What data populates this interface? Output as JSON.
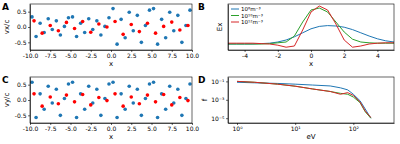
{
  "chart_data": [
    {
      "type": "scatter",
      "title": "A",
      "xlabel": "x",
      "ylabel": "vx/c",
      "xlim": [
        -10,
        10
      ],
      "ylim": [
        -0.75,
        0.75
      ],
      "xticks": [
        {
          "value": -10,
          "label": "-10.0"
        },
        -7.5,
        {
          "value": -5,
          "label": "-5.0"
        },
        -2.5,
        {
          "value": 0,
          "label": "0.0"
        },
        2.5,
        {
          "value": 5,
          "label": "5.0"
        },
        7.5,
        {
          "value": 10,
          "label": "10.0"
        }
      ],
      "yticks": [
        -0.5,
        {
          "value": 0,
          "label": "0.0"
        },
        0.5
      ],
      "series": [
        {
          "color": "#1f77b4",
          "x": [
            -9.75,
            -9.25,
            -8.75,
            -8.25,
            -7.75,
            -7.25,
            -6.75,
            -6.25,
            -5.75,
            -5.25,
            -4.75,
            -4.25,
            -3.75,
            -3.25,
            -2.75,
            -2.25,
            -1.75,
            -1.25,
            -0.75,
            -0.25,
            0.25,
            0.75,
            1.25,
            1.75,
            2.25,
            2.75,
            3.25,
            3.75,
            4.25,
            4.75,
            5.25,
            5.75,
            6.25,
            6.75,
            7.25,
            7.75,
            8.25,
            8.75,
            9.25,
            9.75
          ],
          "values": [
            0.33,
            -0.31,
            0.12,
            -0.18,
            0.27,
            -0.08,
            0.2,
            -0.26,
            0.02,
            0.3,
            0.33,
            -0.31,
            0.12,
            -0.18,
            0.27,
            -0.08,
            0.2,
            -0.26,
            0.02,
            0.3,
            0.6,
            -0.56,
            0.25,
            -0.35,
            0.48,
            -0.12,
            0.38,
            -0.5,
            0.05,
            0.55,
            0.6,
            -0.56,
            0.25,
            -0.35,
            0.48,
            -0.12,
            0.38,
            -0.5,
            0.05,
            0.55
          ]
        },
        {
          "color": "#ff0000",
          "x": [
            -9.5,
            -8.5,
            -7.5,
            -6.5,
            -5.5,
            -4.5,
            -3.5,
            -2.5,
            -1.5,
            -0.5,
            0.5,
            1.5,
            2.5,
            3.5,
            4.5,
            5.5,
            6.5,
            7.5,
            8.5,
            9.5
          ],
          "values": [
            0.2,
            -0.2,
            0.05,
            -0.12,
            0.15,
            -0.05,
            0.18,
            -0.17,
            0.1,
            0.0,
            0.18,
            -0.24,
            0.08,
            -0.15,
            0.12,
            -0.2,
            0.02,
            0.16,
            -0.1,
            0.05
          ]
        }
      ]
    },
    {
      "type": "line",
      "title": "B",
      "xlabel": "x",
      "ylabel": "Ex",
      "xlim": [
        -5,
        5
      ],
      "ylim": [
        -0.15,
        1.0
      ],
      "xticks": [
        -4,
        -2,
        0,
        2,
        4
      ],
      "tick_labels": "x",
      "legend": "upper left",
      "x": [
        -5,
        -4.5,
        -4,
        -3.5,
        -3,
        -2.5,
        -2,
        -1.5,
        -1,
        -0.5,
        0,
        0.5,
        1,
        1.5,
        2,
        2.5,
        3,
        3.5,
        4,
        4.5,
        5
      ],
      "series": [
        {
          "name": "10⁸m⁻³",
          "color": "#1f77b4",
          "values": [
            0,
            0,
            0,
            0,
            0.01,
            0.02,
            0.05,
            0.1,
            0.18,
            0.28,
            0.38,
            0.44,
            0.46,
            0.45,
            0.42,
            0.36,
            0.28,
            0.2,
            0.13,
            0.08,
            0.05
          ]
        },
        {
          "name": "10¹⁰m⁻³",
          "color": "#2ca02c",
          "values": [
            0,
            0,
            0,
            0,
            0,
            0.01,
            0.03,
            0.05,
            0.2,
            0.55,
            0.85,
            0.9,
            0.8,
            0.55,
            0.3,
            0.12,
            0.05,
            0.03,
            0.02,
            0.02,
            0.02
          ]
        },
        {
          "name": "10¹²m⁻³",
          "color": "#d62728",
          "values": [
            0.02,
            0.02,
            0.02,
            0.02,
            0.01,
            0.0,
            -0.03,
            -0.08,
            -0.05,
            0.35,
            0.8,
            0.95,
            0.85,
            0.5,
            0.1,
            -0.08,
            -0.05,
            0.0,
            0.02,
            0.03,
            0.03
          ]
        }
      ]
    },
    {
      "type": "scatter",
      "title": "C",
      "xlabel": "x",
      "ylabel": "vy/c",
      "xlim": [
        -10,
        10
      ],
      "ylim": [
        -0.75,
        0.75
      ],
      "xticks": [
        {
          "value": -10,
          "label": "-10.0"
        },
        -7.5,
        {
          "value": -5,
          "label": "-5.0"
        },
        -2.5,
        {
          "value": 0,
          "label": "0.0"
        },
        2.5,
        {
          "value": 5,
          "label": "5.0"
        },
        7.5,
        {
          "value": 10,
          "label": "10.0"
        }
      ],
      "yticks": [
        -0.5,
        {
          "value": 0,
          "label": "0.0"
        },
        0.5
      ],
      "series": [
        {
          "color": "#1f77b4",
          "x": [
            -9.75,
            -9.25,
            -8.75,
            -8.25,
            -7.75,
            -7.25,
            -6.75,
            -6.25,
            -5.75,
            -5.25,
            -4.75,
            -4.25,
            -3.75,
            -3.25,
            -2.75,
            -2.25,
            -1.75,
            -1.25,
            -0.75,
            -0.25,
            0.25,
            0.75,
            1.25,
            1.75,
            2.25,
            2.75,
            3.25,
            3.75,
            4.25,
            4.75,
            5.25,
            5.75,
            6.25,
            6.75,
            7.25,
            7.75,
            8.25,
            8.75,
            9.25,
            9.75
          ],
          "values": [
            0.58,
            -0.57,
            0.2,
            -0.3,
            0.45,
            -0.1,
            0.35,
            -0.5,
            0.05,
            0.52,
            0.58,
            -0.57,
            0.2,
            -0.3,
            0.45,
            -0.1,
            0.35,
            -0.5,
            0.05,
            0.52,
            0.58,
            -0.57,
            0.2,
            -0.3,
            0.45,
            -0.1,
            0.35,
            -0.5,
            0.05,
            0.52,
            0.58,
            -0.57,
            0.2,
            -0.3,
            0.45,
            -0.1,
            0.35,
            -0.5,
            0.05,
            0.52
          ]
        },
        {
          "color": "#ff0000",
          "x": [
            -9.5,
            -8.5,
            -7.5,
            -6.5,
            -5.5,
            -4.5,
            -3.5,
            -2.5,
            -1.5,
            -0.5,
            0.5,
            1.5,
            2.5,
            3.5,
            4.5,
            5.5,
            6.5,
            7.5,
            8.5,
            9.5
          ],
          "values": [
            0.2,
            -0.2,
            0.1,
            -0.12,
            0.16,
            -0.06,
            0.18,
            -0.16,
            0.08,
            -0.02,
            0.2,
            -0.2,
            0.1,
            -0.12,
            0.16,
            -0.06,
            0.18,
            -0.16,
            0.08,
            -0.02
          ]
        }
      ]
    },
    {
      "type": "line",
      "title": "D",
      "xlabel": "eV",
      "ylabel": "f",
      "log": true,
      "xlim": [
        0.7,
        500
      ],
      "ylim": [
        3e-06,
        0.3
      ],
      "xticks": [
        {
          "value": 1,
          "label": "10⁰"
        },
        {
          "value": 10,
          "label": "10¹"
        },
        {
          "value": 100,
          "label": "10²"
        }
      ],
      "yticks": [
        {
          "value": 1e-05,
          "label": "10⁻⁵"
        },
        {
          "value": 0.001,
          "label": "10⁻³"
        },
        {
          "value": 0.1,
          "label": "10⁻¹"
        }
      ],
      "x": [
        1,
        2,
        5,
        10,
        20,
        40,
        60,
        80,
        100,
        130,
        160,
        200
      ],
      "series": [
        {
          "color": "#1f77b4",
          "values": [
            0.08,
            0.07,
            0.06,
            0.05,
            0.04,
            0.032,
            0.02,
            0.012,
            0.004,
            0.0008,
            0.0001,
            1e-05
          ]
        },
        {
          "color": "#2ca02c",
          "values": [
            0.1,
            0.08,
            0.05,
            0.03,
            0.015,
            0.008,
            0.005,
            0.004,
            0.002,
            0.0005,
            5e-05,
            1e-05
          ]
        },
        {
          "color": "#d62728",
          "values": [
            0.1,
            0.08,
            0.05,
            0.03,
            0.015,
            0.008,
            0.004,
            0.006,
            0.003,
            0.0006,
            6e-05,
            1.2e-05
          ]
        }
      ]
    }
  ]
}
